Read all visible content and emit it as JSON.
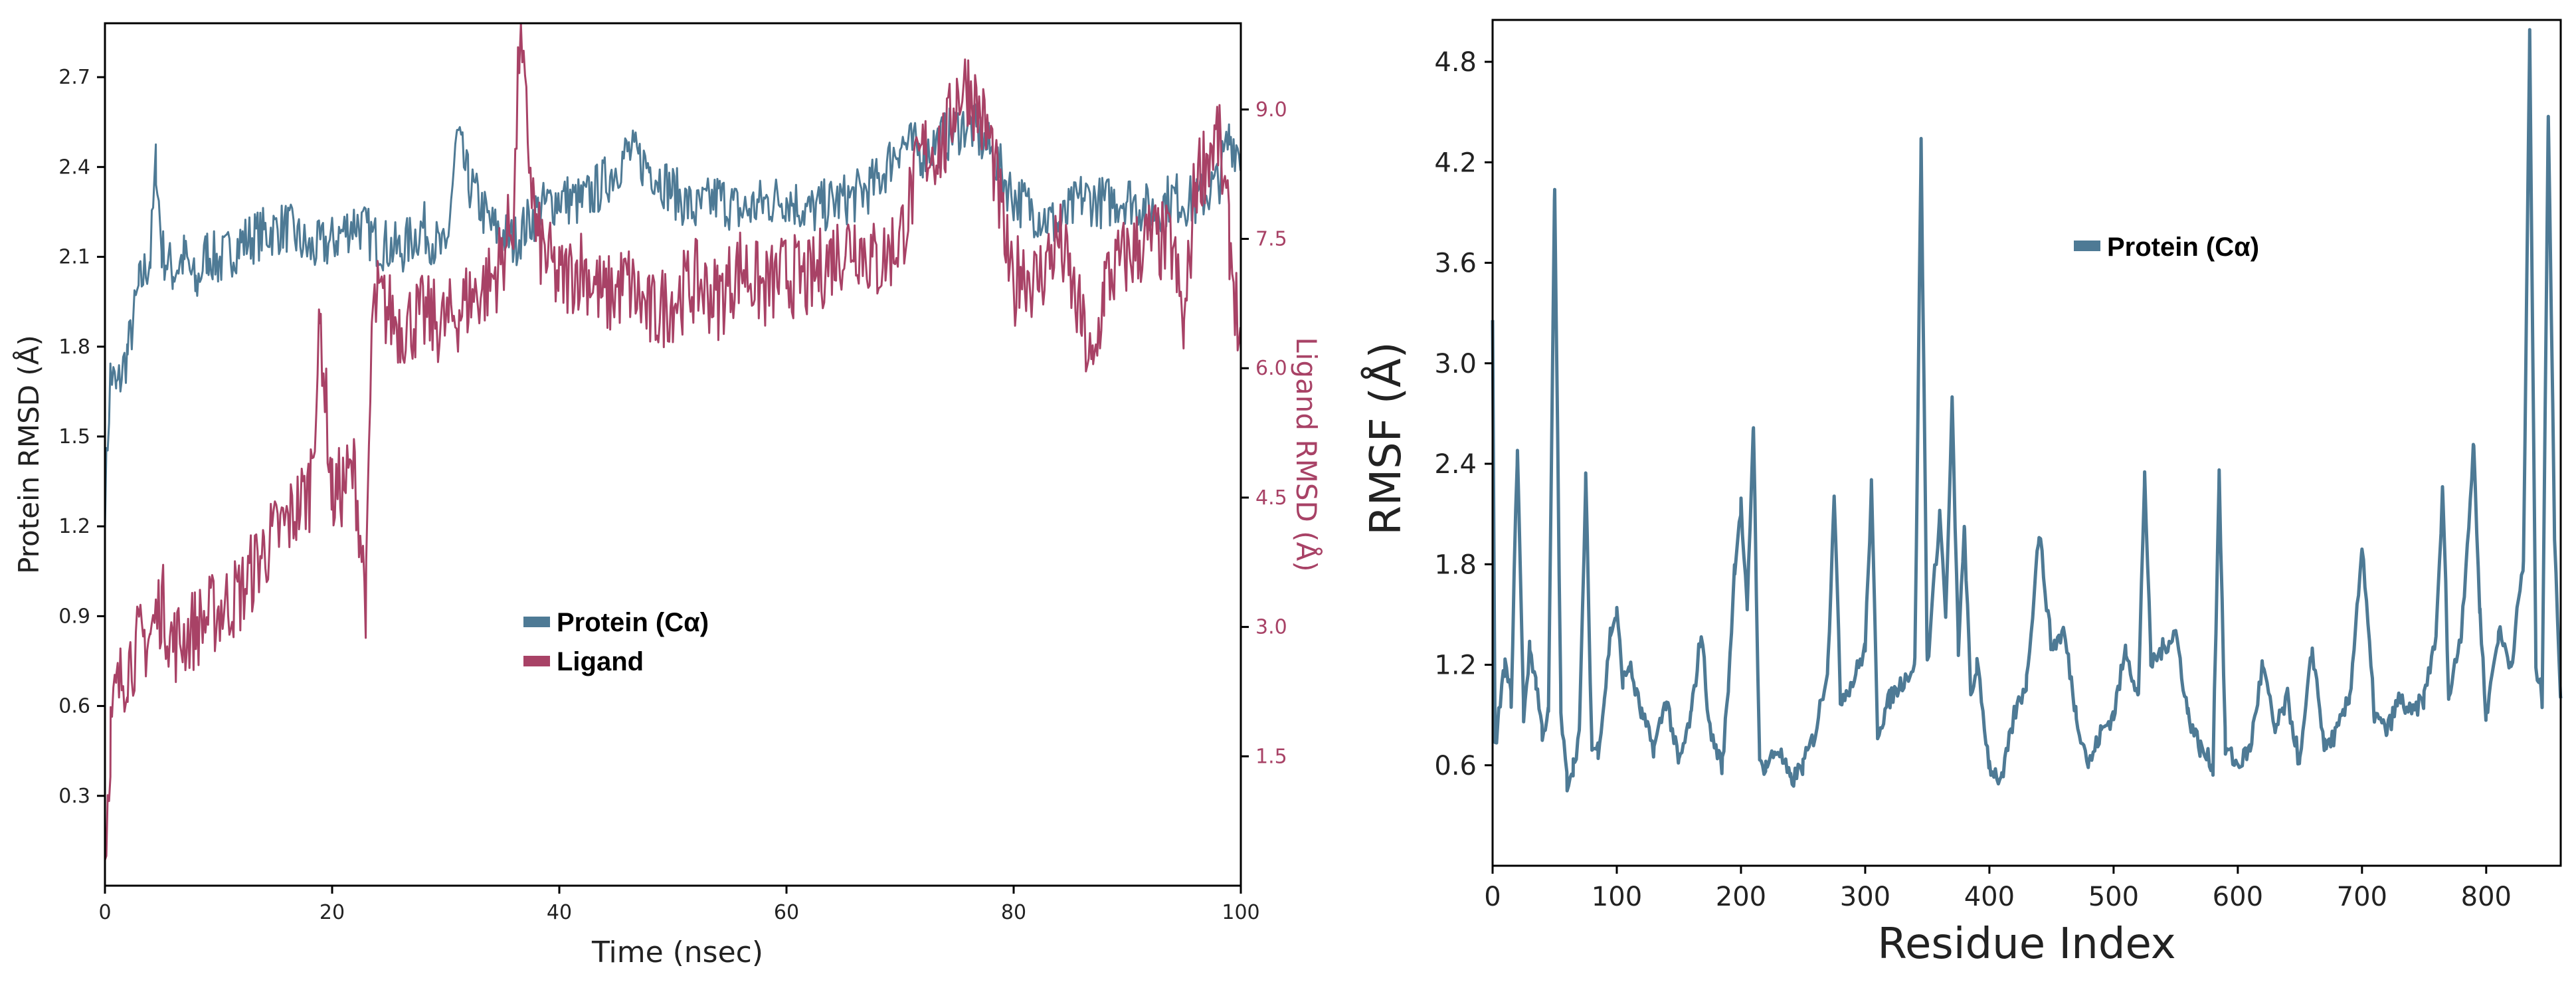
{
  "chart_data": [
    {
      "type": "line",
      "title": "",
      "xlabel": "Time (nsec)",
      "ylabel": "Protein RMSD (Å)",
      "y2label": "Ligand RMSD (Å)",
      "xlim": [
        0,
        100
      ],
      "ylim": [
        0,
        2.88
      ],
      "y2lim": [
        0,
        10.0
      ],
      "xticks": [
        0,
        20,
        40,
        60,
        80,
        100
      ],
      "xtick_labels": [
        "0",
        "20",
        "40",
        "60",
        "80",
        "100"
      ],
      "yticks": [
        0.3,
        0.6,
        0.9,
        1.2,
        1.5,
        1.8,
        2.1,
        2.4,
        2.7
      ],
      "ytick_labels": [
        "0.3",
        "0.6",
        "0.9",
        "1.2",
        "1.5",
        "1.8",
        "2.1",
        "2.4",
        "2.7"
      ],
      "y2ticks": [
        1.5,
        3.0,
        4.5,
        6.0,
        7.5,
        9.0
      ],
      "y2tick_labels": [
        "1.5",
        "3.0",
        "4.5",
        "6.0",
        "7.5",
        "9.0"
      ],
      "legend_position": "center",
      "series": [
        {
          "name": "Protein (Cα)",
          "axis": "left",
          "color": "#4e7a95",
          "x": [
            0,
            0.5,
            1,
            2,
            3,
            4,
            4.5,
            5,
            6,
            7,
            8,
            9,
            10,
            12,
            14,
            16,
            18,
            20,
            22,
            24,
            26,
            28,
            30,
            31,
            32,
            34,
            36,
            38,
            40,
            42,
            44,
            46,
            48,
            50,
            52,
            54,
            56,
            58,
            60,
            62,
            64,
            66,
            68,
            70,
            72,
            74,
            76,
            78,
            80,
            82,
            84,
            86,
            88,
            90,
            92,
            94,
            96,
            98,
            99,
            100
          ],
          "values": [
            1.28,
            1.72,
            1.65,
            1.78,
            2.0,
            2.1,
            2.42,
            2.12,
            2.05,
            2.1,
            2.0,
            2.12,
            2.08,
            2.15,
            2.18,
            2.2,
            2.12,
            2.15,
            2.22,
            2.15,
            2.12,
            2.2,
            2.1,
            2.5,
            2.35,
            2.2,
            2.15,
            2.25,
            2.3,
            2.28,
            2.35,
            2.45,
            2.4,
            2.32,
            2.25,
            2.3,
            2.25,
            2.28,
            2.3,
            2.25,
            2.28,
            2.3,
            2.35,
            2.48,
            2.45,
            2.5,
            2.55,
            2.45,
            2.3,
            2.25,
            2.2,
            2.3,
            2.28,
            2.3,
            2.25,
            2.3,
            2.28,
            2.35,
            2.5,
            2.45
          ]
        },
        {
          "name": "Ligand",
          "axis": "right",
          "color": "#a84266",
          "x": [
            0,
            0.5,
            1,
            2,
            3,
            4,
            5,
            6,
            8,
            10,
            12,
            14,
            16,
            18,
            19,
            20,
            22,
            23,
            23.5,
            24,
            26,
            28,
            30,
            32,
            34,
            35,
            36,
            36.5,
            38,
            40,
            42,
            44,
            46,
            48,
            50,
            52,
            54,
            56,
            58,
            60,
            62,
            64,
            66,
            68,
            70,
            72,
            74,
            75,
            76,
            78,
            80,
            80.5,
            82,
            84,
            86,
            87,
            88,
            90,
            92,
            94,
            95,
            96,
            98,
            99,
            100
          ],
          "values": [
            0.3,
            1.8,
            2.2,
            2.6,
            2.8,
            2.9,
            3.3,
            2.8,
            3.0,
            3.2,
            3.4,
            3.9,
            4.2,
            4.6,
            6.5,
            4.5,
            4.8,
            3.3,
            6.5,
            6.8,
            6.5,
            6.6,
            6.5,
            6.8,
            7.0,
            7.3,
            7.8,
            9.8,
            7.5,
            7.0,
            7.2,
            6.8,
            7.0,
            6.6,
            6.8,
            7.0,
            6.8,
            7.2,
            6.9,
            7.1,
            7.0,
            7.3,
            7.5,
            7.2,
            7.5,
            8.5,
            8.6,
            9.2,
            9.3,
            8.6,
            6.8,
            7.2,
            7.0,
            7.5,
            6.5,
            5.9,
            7.0,
            7.3,
            7.5,
            7.4,
            6.4,
            8.2,
            8.7,
            7.5,
            6.2
          ]
        }
      ]
    },
    {
      "type": "line",
      "title": "",
      "xlabel": "Residue Index",
      "ylabel": "RMSF (Å)",
      "xlim": [
        0,
        860
      ],
      "ylim": [
        0,
        5.05
      ],
      "xticks": [
        0,
        100,
        200,
        300,
        400,
        500,
        600,
        700,
        800
      ],
      "xtick_labels": [
        "0",
        "100",
        "200",
        "300",
        "400",
        "500",
        "600",
        "700",
        "800"
      ],
      "yticks": [
        0.6,
        1.2,
        1.8,
        2.4,
        3.0,
        3.6,
        4.2,
        4.8
      ],
      "ytick_labels": [
        "0.6",
        "1.2",
        "1.8",
        "2.4",
        "3.0",
        "3.6",
        "4.2",
        "4.8"
      ],
      "legend_position": "top-center",
      "series": [
        {
          "name": "Protein (Cα)",
          "color": "#4e7a95",
          "x": [
            0,
            2,
            5,
            10,
            15,
            20,
            25,
            30,
            35,
            40,
            45,
            50,
            55,
            60,
            65,
            70,
            75,
            80,
            85,
            90,
            95,
            100,
            105,
            110,
            120,
            130,
            140,
            150,
            160,
            168,
            175,
            185,
            190,
            195,
            200,
            205,
            210,
            215,
            220,
            230,
            240,
            250,
            260,
            270,
            275,
            280,
            290,
            300,
            305,
            310,
            320,
            330,
            340,
            345,
            350,
            360,
            365,
            370,
            375,
            380,
            385,
            390,
            400,
            410,
            420,
            430,
            440,
            450,
            460,
            470,
            480,
            490,
            500,
            510,
            520,
            525,
            530,
            540,
            550,
            560,
            570,
            580,
            585,
            590,
            600,
            610,
            620,
            630,
            640,
            650,
            660,
            670,
            680,
            690,
            700,
            710,
            720,
            730,
            740,
            750,
            760,
            765,
            770,
            780,
            790,
            795,
            800,
            810,
            820,
            830,
            835,
            840,
            845,
            850,
            855,
            860
          ],
          "values": [
            3.2,
            0.7,
            0.9,
            1.2,
            1.0,
            2.5,
            0.9,
            1.3,
            1.1,
            0.8,
            0.9,
            4.05,
            0.9,
            0.5,
            0.6,
            0.8,
            2.3,
            0.7,
            0.7,
            1.0,
            1.4,
            1.5,
            1.1,
            1.2,
            0.9,
            0.7,
            1.0,
            0.6,
            0.9,
            1.4,
            0.8,
            0.6,
            1.1,
            1.8,
            2.15,
            1.5,
            2.65,
            0.6,
            0.6,
            0.7,
            0.5,
            0.6,
            0.8,
            1.2,
            2.25,
            1.0,
            1.1,
            1.3,
            2.25,
            0.8,
            1.0,
            1.1,
            1.2,
            4.3,
            1.2,
            2.1,
            1.5,
            2.75,
            1.3,
            2.0,
            1.0,
            1.2,
            0.6,
            0.5,
            0.9,
            1.1,
            2.0,
            1.3,
            1.4,
            0.9,
            0.6,
            0.8,
            0.9,
            1.3,
            1.0,
            2.35,
            1.2,
            1.3,
            1.4,
            0.9,
            0.7,
            0.6,
            2.35,
            0.7,
            0.6,
            0.7,
            1.2,
            0.8,
            1.0,
            0.6,
            1.3,
            0.7,
            0.8,
            1.0,
            1.9,
            0.9,
            0.8,
            1.0,
            0.9,
            1.0,
            1.4,
            2.25,
            1.0,
            1.4,
            2.5,
            1.5,
            0.9,
            1.4,
            1.2,
            1.8,
            4.95,
            1.2,
            1.0,
            4.5,
            2.0,
            1.0
          ]
        }
      ]
    }
  ]
}
